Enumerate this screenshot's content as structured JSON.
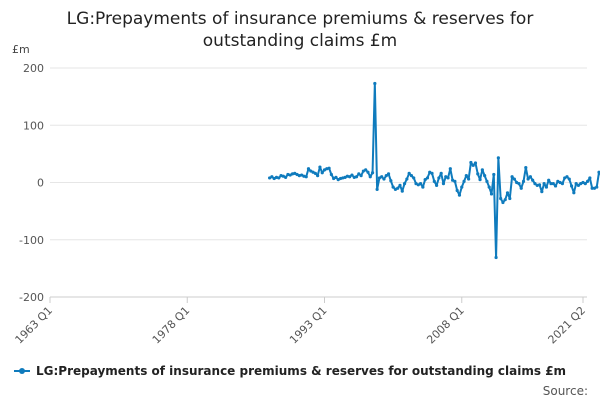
{
  "chart_data": {
    "type": "line",
    "title": "LG:Prepayments of insurance premiums & reserves for outstanding claims £m",
    "title_lines": [
      "LG:Prepayments of insurance premiums & reserves for",
      "outstanding claims £m"
    ],
    "ylabel": "£m",
    "xlabel": "",
    "ylim": [
      -200,
      200
    ],
    "yticks": [
      200,
      100,
      0,
      -100,
      -200
    ],
    "x_range": [
      1963.0,
      2021.25
    ],
    "xticks": [
      {
        "label": "1963 Q1",
        "value": 1963.0
      },
      {
        "label": "1978 Q1",
        "value": 1978.0
      },
      {
        "label": "1993 Q1",
        "value": 1993.0
      },
      {
        "label": "2008 Q1",
        "value": 2008.0
      },
      {
        "label": "2021 Q2",
        "value": 2021.25
      }
    ],
    "grid": true,
    "legend": "bottom-left",
    "series": [
      {
        "name": "LG:Prepayments of insurance premiums & reserves for outstanding claims £m",
        "color": "#0f7bbd",
        "start": 1987.0,
        "step": 0.25,
        "values": [
          8,
          10,
          7,
          9,
          8,
          12,
          11,
          9,
          14,
          13,
          15,
          16,
          14,
          12,
          13,
          11,
          10,
          24,
          20,
          18,
          16,
          12,
          27,
          17,
          22,
          24,
          25,
          14,
          7,
          9,
          5,
          7,
          8,
          9,
          11,
          10,
          13,
          9,
          10,
          15,
          12,
          20,
          22,
          18,
          10,
          17,
          173,
          -12,
          8,
          10,
          6,
          12,
          15,
          3,
          -8,
          -12,
          -10,
          -5,
          -15,
          -2,
          6,
          16,
          12,
          8,
          -2,
          -4,
          -2,
          -8,
          5,
          8,
          18,
          16,
          2,
          -5,
          8,
          16,
          -2,
          10,
          8,
          24,
          4,
          2,
          -14,
          -22,
          -8,
          2,
          12,
          6,
          35,
          30,
          34,
          15,
          5,
          22,
          12,
          2,
          -8,
          -20,
          14,
          -131,
          43,
          -28,
          -35,
          -30,
          -18,
          -28,
          10,
          6,
          0,
          -2,
          -10,
          2,
          26,
          6,
          10,
          4,
          -2,
          -5,
          -4,
          -16,
          -2,
          -8,
          4,
          -2,
          -2,
          -6,
          2,
          0,
          -2,
          8,
          10,
          6,
          -6,
          -18,
          -2,
          -5,
          -2,
          0,
          -2,
          2,
          8,
          -10,
          -10,
          -8,
          18,
          14,
          -2,
          -8,
          12
        ]
      }
    ]
  },
  "source_label": "Source:"
}
